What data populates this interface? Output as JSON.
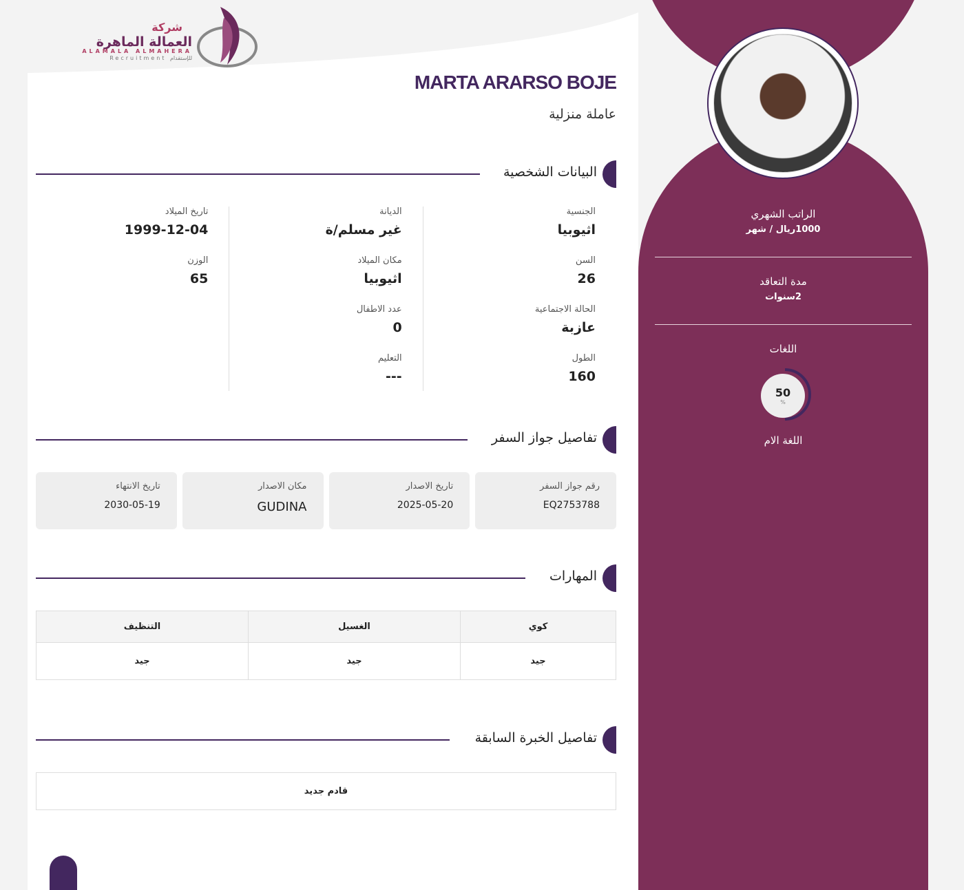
{
  "logo": {
    "ar_top": "شركة",
    "ar_name": "العمالة الماهرة",
    "en_name": "ALAMALA ALMAHERA",
    "sub": "Recruitment للإستقدام"
  },
  "profile": {
    "name": "MARTA ARARSO BOJE",
    "job": "عاملة منزلية"
  },
  "sections": {
    "personal": "البيانات الشخصية",
    "passport": "تفاصيل جواز السفر",
    "skills": "المهارات",
    "experience": "تفاصيل الخبرة السابقة"
  },
  "personal": {
    "col1": [
      {
        "label": "الجنسية",
        "value": "اثيوبيا"
      },
      {
        "label": "السن",
        "value": "26"
      },
      {
        "label": "الحالة الاجتماعية",
        "value": "عازبة"
      },
      {
        "label": "الطول",
        "value": "160"
      }
    ],
    "col2": [
      {
        "label": "الديانة",
        "value": "غير مسلم/ة"
      },
      {
        "label": "مكان الميلاد",
        "value": "اثيوبيا"
      },
      {
        "label": "عدد الاطفال",
        "value": "0"
      },
      {
        "label": "التعليم",
        "value": "---"
      }
    ],
    "col3": [
      {
        "label": "تاريخ الميلاد",
        "value": "1999-12-04"
      },
      {
        "label": "الوزن",
        "value": "65"
      }
    ]
  },
  "passport": [
    {
      "label": "رقم جواز السفر",
      "value": "EQ2753788"
    },
    {
      "label": "تاريخ الاصدار",
      "value": "2025-05-20"
    },
    {
      "label": "مكان الاصدار",
      "value": "GUDINA"
    },
    {
      "label": "تاريخ الانتهاء",
      "value": "2030-05-19"
    }
  ],
  "skills": {
    "headers": [
      "كوي",
      "الغسيل",
      "التنظيف"
    ],
    "values": [
      "جيد",
      "جيد",
      "جيد"
    ]
  },
  "experience": "قادم جديد",
  "sidebar": {
    "salary_label": "الراتب الشهري",
    "salary": "1000ريال / شهر",
    "contract_label": "مدة التعاقد",
    "contract": "2سنوات",
    "languages_label": "اللغات",
    "language_percent": 50,
    "percent_sign": "%",
    "language_name": "اللغة الام"
  },
  "colors": {
    "primary": "#43275f",
    "sidebar": "#7d2f58"
  }
}
